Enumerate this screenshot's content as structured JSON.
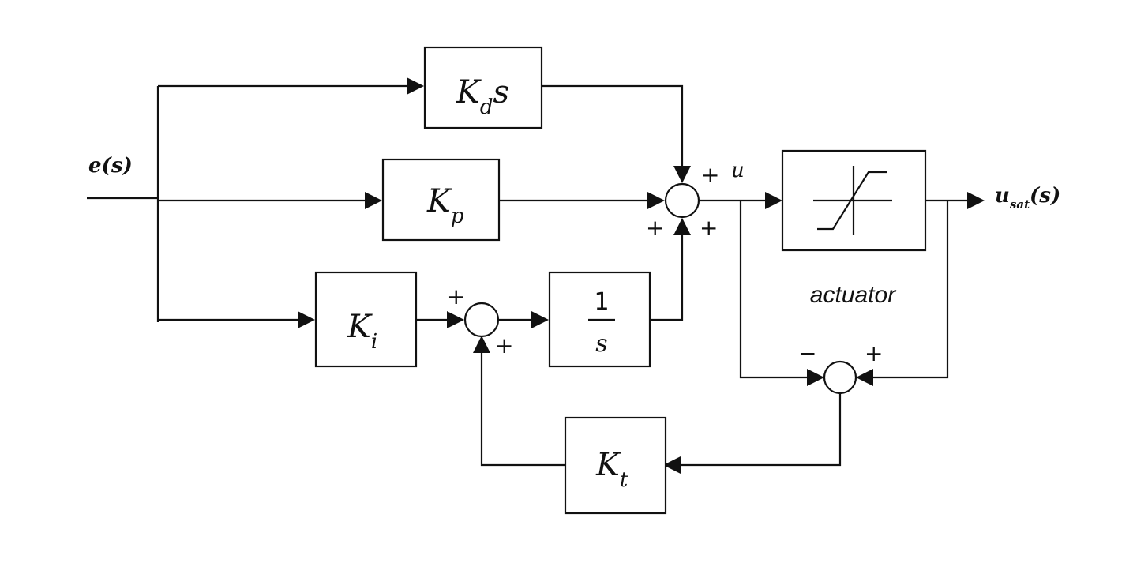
{
  "signals": {
    "input": "e(s)",
    "controller_output": "u",
    "output_main": "u",
    "output_sub": "sat",
    "output_tail": "(s)"
  },
  "blocks": {
    "derivative": {
      "main": "K",
      "sub": "d",
      "tail": "s"
    },
    "proportional": {
      "main": "K",
      "sub": "p"
    },
    "integral_gain": {
      "main": "K",
      "sub": "i"
    },
    "integrator": {
      "numerator": "1",
      "denominator": "s"
    },
    "tracking_gain": {
      "main": "K",
      "sub": "t"
    },
    "actuator_label": "actuator"
  },
  "signs": {
    "main_sum_top": "+",
    "main_sum_left": "+",
    "main_sum_bottom": "+",
    "integrator_sum_top": "+",
    "integrator_sum_bottom": "+",
    "error_sum_left": "−",
    "error_sum_right": "+"
  }
}
